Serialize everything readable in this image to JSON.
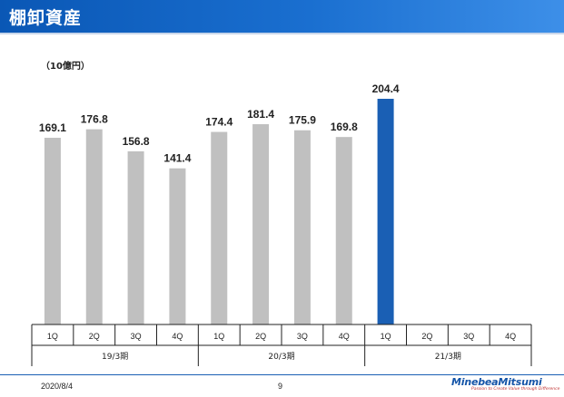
{
  "header": {
    "title": "棚卸資産"
  },
  "unit_label": "（10億円）",
  "chart_data": {
    "type": "bar",
    "unit": "10億円",
    "quarters": [
      "1Q",
      "2Q",
      "3Q",
      "4Q",
      "1Q",
      "2Q",
      "3Q",
      "4Q",
      "1Q",
      "2Q",
      "3Q",
      "4Q"
    ],
    "groups": [
      {
        "label": "19/3期",
        "quarters": [
          "1Q",
          "2Q",
          "3Q",
          "4Q"
        ],
        "values": [
          169.1,
          176.8,
          156.8,
          141.4
        ]
      },
      {
        "label": "20/3期",
        "quarters": [
          "1Q",
          "2Q",
          "3Q",
          "4Q"
        ],
        "values": [
          174.4,
          181.4,
          175.9,
          169.8
        ]
      },
      {
        "label": "21/3期",
        "quarters": [
          "1Q",
          "2Q",
          "3Q",
          "4Q"
        ],
        "values": [
          204.4,
          null,
          null,
          null
        ]
      }
    ],
    "values": [
      169.1,
      176.8,
      156.8,
      141.4,
      174.4,
      181.4,
      175.9,
      169.8,
      204.4,
      null,
      null,
      null
    ],
    "value_labels": [
      "169.1",
      "176.8",
      "156.8",
      "141.4",
      "174.4",
      "181.4",
      "175.9",
      "169.8",
      "204.4",
      "",
      "",
      ""
    ],
    "colors": {
      "past": "#c0c0c0",
      "current": "#1a5fb4",
      "label": "#222222"
    },
    "highlight_index": 8,
    "ylim": [
      0,
      220
    ],
    "grid": false,
    "legend": "none"
  },
  "footer": {
    "date": "2020/8/4",
    "page": "9",
    "logo_text": "MinebeaMitsumi",
    "logo_tagline": "Passion to Create Value through Difference"
  }
}
